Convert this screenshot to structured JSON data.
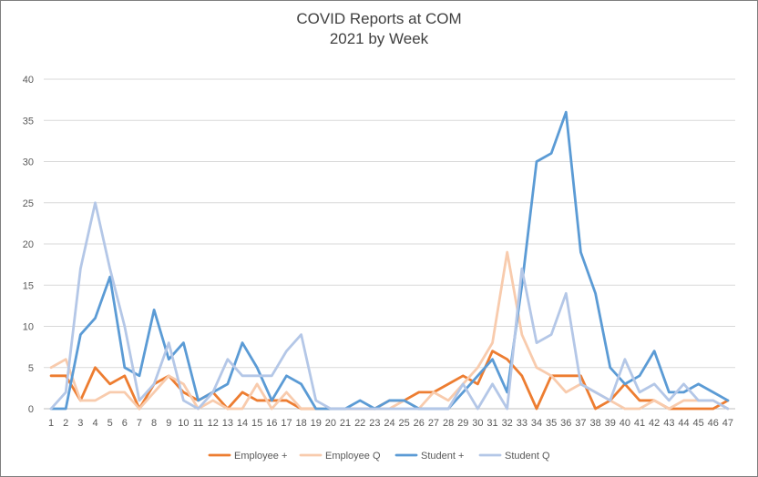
{
  "chart_data": {
    "type": "line",
    "title_line1": "COVID Reports at COM",
    "title_line2": "2021 by Week",
    "xlabel": "",
    "ylabel": "",
    "ylim": [
      0,
      40
    ],
    "yticks": [
      0,
      5,
      10,
      15,
      20,
      25,
      30,
      35,
      40
    ],
    "grid": "horizontal",
    "legend_position": "bottom",
    "x": [
      1,
      2,
      3,
      4,
      5,
      6,
      7,
      8,
      9,
      10,
      11,
      12,
      13,
      14,
      15,
      16,
      17,
      18,
      19,
      20,
      21,
      22,
      23,
      24,
      25,
      26,
      27,
      28,
      29,
      30,
      31,
      32,
      33,
      34,
      35,
      36,
      37,
      38,
      39,
      40,
      41,
      42,
      43,
      44,
      45,
      46,
      47
    ],
    "series": [
      {
        "name": "Employee +",
        "color": "#ED7D31",
        "values": [
          4,
          4,
          1,
          5,
          3,
          4,
          0,
          3,
          4,
          2,
          1,
          2,
          0,
          2,
          1,
          1,
          1,
          0,
          0,
          0,
          0,
          0,
          0,
          1,
          1,
          2,
          2,
          3,
          4,
          3,
          7,
          6,
          4,
          0,
          4,
          4,
          4,
          0,
          1,
          3,
          1,
          1,
          0,
          0,
          0,
          0,
          1
        ]
      },
      {
        "name": "Employee Q",
        "color": "#F8CBAD",
        "values": [
          5,
          6,
          1,
          1,
          2,
          2,
          0,
          2,
          4,
          3,
          0,
          1,
          0,
          0,
          3,
          0,
          2,
          0,
          0,
          0,
          0,
          0,
          0,
          0,
          1,
          0,
          2,
          1,
          3,
          5,
          8,
          19,
          9,
          5,
          4,
          2,
          3,
          2,
          1,
          0,
          0,
          1,
          0,
          1,
          1,
          1,
          0
        ]
      },
      {
        "name": "Student +",
        "color": "#5B9BD5",
        "values": [
          0,
          0,
          9,
          11,
          16,
          5,
          4,
          12,
          6,
          8,
          1,
          2,
          3,
          8,
          5,
          1,
          4,
          3,
          0,
          0,
          0,
          1,
          0,
          1,
          1,
          0,
          0,
          0,
          2,
          4,
          6,
          2,
          15,
          30,
          31,
          36,
          19,
          14,
          5,
          3,
          4,
          7,
          2,
          2,
          3,
          2,
          1
        ]
      },
      {
        "name": "Student Q",
        "color": "#B4C7E7",
        "values": [
          0,
          2,
          17,
          25,
          17,
          10,
          1,
          3,
          8,
          1,
          0,
          2,
          6,
          4,
          4,
          4,
          7,
          9,
          1,
          0,
          0,
          0,
          0,
          0,
          0,
          0,
          0,
          0,
          3,
          0,
          3,
          0,
          17,
          8,
          9,
          14,
          3,
          2,
          1,
          6,
          2,
          3,
          1,
          3,
          1,
          1,
          0
        ]
      }
    ]
  }
}
